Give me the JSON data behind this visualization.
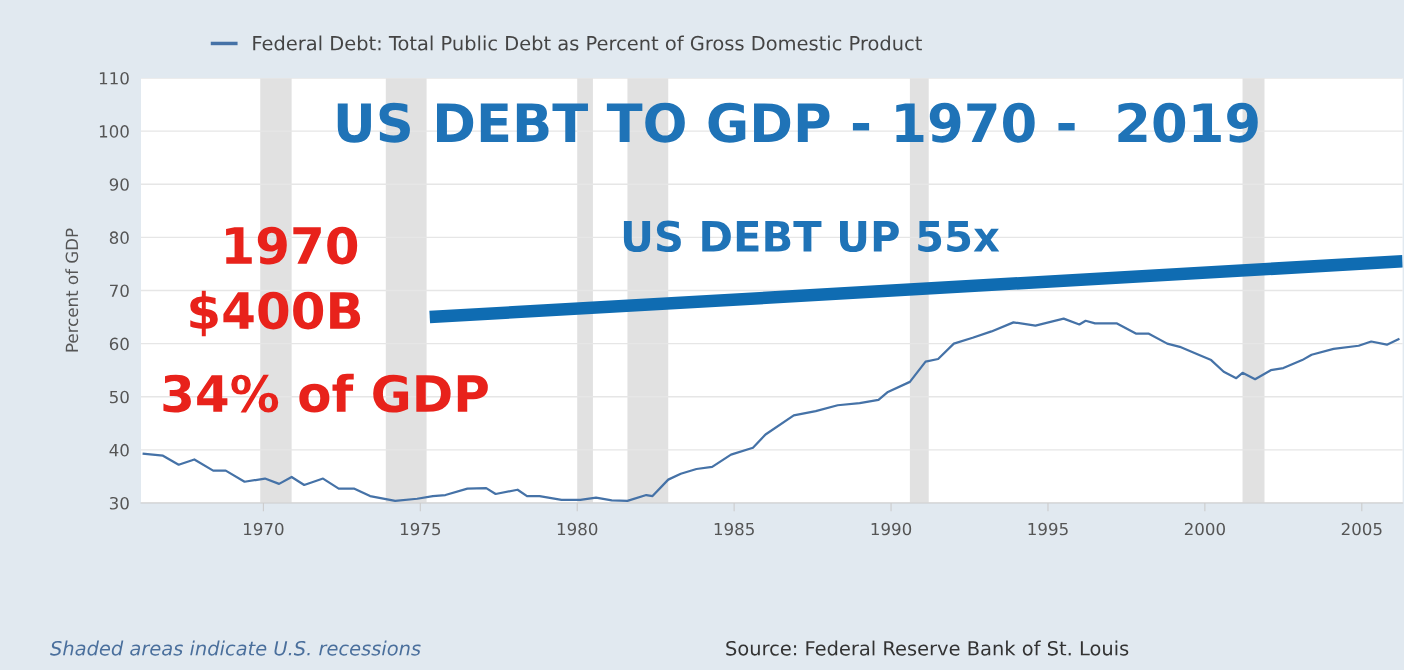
{
  "chart_data": {
    "type": "line",
    "title": "US DEBT TO GDP - 1970 -  2019",
    "ylabel": "Percent of GDP",
    "x": [
      1966.15,
      1966.8,
      1967.3,
      1967.8,
      1968.4,
      1968.8,
      1969.4,
      1970.05,
      1970.5,
      1970.9,
      1971.3,
      1971.9,
      1972.4,
      1972.9,
      1973.4,
      1974.2,
      1974.9,
      1975.4,
      1975.8,
      1976.5,
      1977.1,
      1977.4,
      1978.1,
      1978.4,
      1978.8,
      1979.5,
      1980.1,
      1980.6,
      1981.1,
      1981.6,
      1982.2,
      1982.4,
      1982.9,
      1983.3,
      1983.8,
      1984.3,
      1984.9,
      1985.6,
      1986.0,
      1986.9,
      1987.6,
      1988.3,
      1989.0,
      1989.6,
      1989.9,
      1990.6,
      1991.1,
      1991.5,
      1992.0,
      1992.6,
      1993.2,
      1993.9,
      1994.6,
      1995.5,
      1996.0,
      1996.2,
      1996.5,
      1997.2,
      1997.8,
      1998.2,
      1998.8,
      1999.2,
      1999.8,
      2000.2,
      2000.6,
      2001.0,
      2001.2,
      2001.6,
      2002.1,
      2002.5,
      2003.1,
      2003.4,
      2004.1,
      2004.9,
      2005.3,
      2005.8,
      2006.2
    ],
    "series": [
      {
        "name": "Federal Debt: Total Public Debt as Percent of Gross Domestic Product",
        "color": "#4572a7",
        "values": [
          39.3,
          38.9,
          37.2,
          38.2,
          36.1,
          36.1,
          34.0,
          34.6,
          33.6,
          34.9,
          33.4,
          34.6,
          32.7,
          32.7,
          31.3,
          30.4,
          30.8,
          31.3,
          31.5,
          32.7,
          32.8,
          31.7,
          32.5,
          31.3,
          31.3,
          30.6,
          30.6,
          31.0,
          30.5,
          30.4,
          31.5,
          31.3,
          34.4,
          35.5,
          36.4,
          36.8,
          39.1,
          40.4,
          42.9,
          46.5,
          47.3,
          48.4,
          48.8,
          49.4,
          50.9,
          52.8,
          56.6,
          57.1,
          60.0,
          61.1,
          62.3,
          64.0,
          63.4,
          64.7,
          63.6,
          64.3,
          63.8,
          63.8,
          61.9,
          61.9,
          60.0,
          59.4,
          57.9,
          56.9,
          54.7,
          53.5,
          54.5,
          53.3,
          55.0,
          55.4,
          56.9,
          57.9,
          59.0,
          59.6,
          60.4,
          59.8,
          60.9
        ]
      },
      {
        "type": "line",
        "color": "#0f6cb2",
        "x": [
          1975.3,
          2006.3
        ],
        "values": [
          65.0,
          75.5
        ]
      }
    ],
    "xlim": [
      1966.1,
      2006.3
    ],
    "xticks": [
      1970,
      1975,
      1980,
      1985,
      1990,
      1995,
      2000,
      2005
    ],
    "ylim": [
      30,
      110
    ],
    "yticks": [
      30,
      40,
      50,
      60,
      70,
      80,
      90,
      100,
      110
    ],
    "grid": "y",
    "legend": "top left",
    "bands": [
      {
        "axis": "x",
        "from": 1969.9,
        "to": 1970.9,
        "color": "#e1e1e1"
      },
      {
        "axis": "x",
        "from": 1973.9,
        "to": 1975.2,
        "color": "#e1e1e1"
      },
      {
        "axis": "x",
        "from": 1980.0,
        "to": 1980.5,
        "color": "#e1e1e1"
      },
      {
        "axis": "x",
        "from": 1981.6,
        "to": 1982.9,
        "color": "#e1e1e1"
      },
      {
        "axis": "x",
        "from": 1990.6,
        "to": 1991.2,
        "color": "#e1e1e1"
      },
      {
        "axis": "x",
        "from": 2001.2,
        "to": 2001.9,
        "color": "#e1e1e1"
      }
    ],
    "annotations": [
      "US DEBT UP 55x",
      "1970",
      "$400B",
      "34% of GDP",
      "Shaded areas indicate U.S. recessions",
      "Source: Federal Reserve Bank of St. Louis"
    ]
  }
}
